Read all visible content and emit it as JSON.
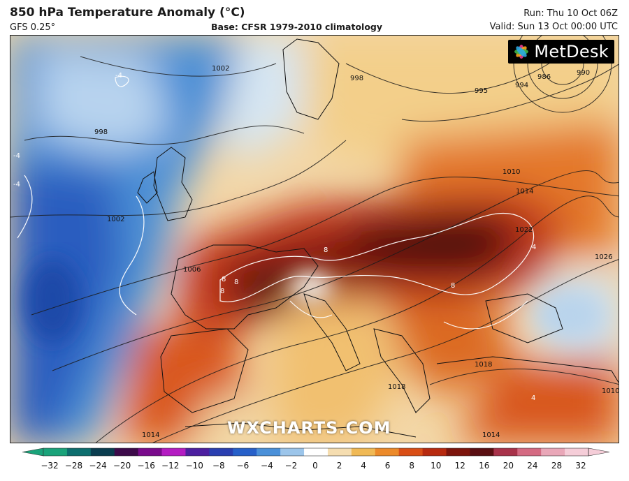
{
  "header": {
    "title": "850 hPa Temperature Anomaly (°C)",
    "model": "GFS 0.25°",
    "base": "Base: CFSR 1979-2010 climatology",
    "run": "Run: Thu 10 Oct 06Z",
    "valid": "Valid: Sun 13 Oct 00:00 UTC"
  },
  "branding": {
    "logo_text": "MetDesk",
    "logo_icon": "metdesk-flower-icon",
    "watermark": "WXCHARTS.COM"
  },
  "isobar_labels": [
    "1002",
    "998",
    "1002",
    "1006",
    "1010",
    "1014",
    "1018",
    "1022",
    "1026",
    "1018",
    "1014",
    "1014",
    "998",
    "995",
    "994",
    "986",
    "990",
    "1010"
  ],
  "anomaly_labels": [
    "-4",
    "-4",
    "-4",
    "8",
    "8",
    "8",
    "8",
    "8",
    "4",
    "4"
  ],
  "colorbar": {
    "ticks": [
      "−32",
      "−28",
      "−24",
      "−20",
      "−16",
      "−12",
      "−10",
      "−8",
      "−6",
      "−4",
      "−2",
      "0",
      "2",
      "4",
      "6",
      "8",
      "10",
      "12",
      "16",
      "20",
      "24",
      "28",
      "32"
    ],
    "colors": [
      "#1aa37a",
      "#0d6e6e",
      "#0a3d4f",
      "#3d0a4a",
      "#7a0a8c",
      "#b41cc2",
      "#4d1fa0",
      "#2a3fb0",
      "#2760c9",
      "#4a90d9",
      "#9cc5ea",
      "#ffffff",
      "#f5ddb0",
      "#f0b955",
      "#ec8a2a",
      "#d94e16",
      "#b72a0f",
      "#7d150c",
      "#5a0f12",
      "#a8324a",
      "#d46a82",
      "#e9a7b8",
      "#f5cdd8"
    ]
  }
}
